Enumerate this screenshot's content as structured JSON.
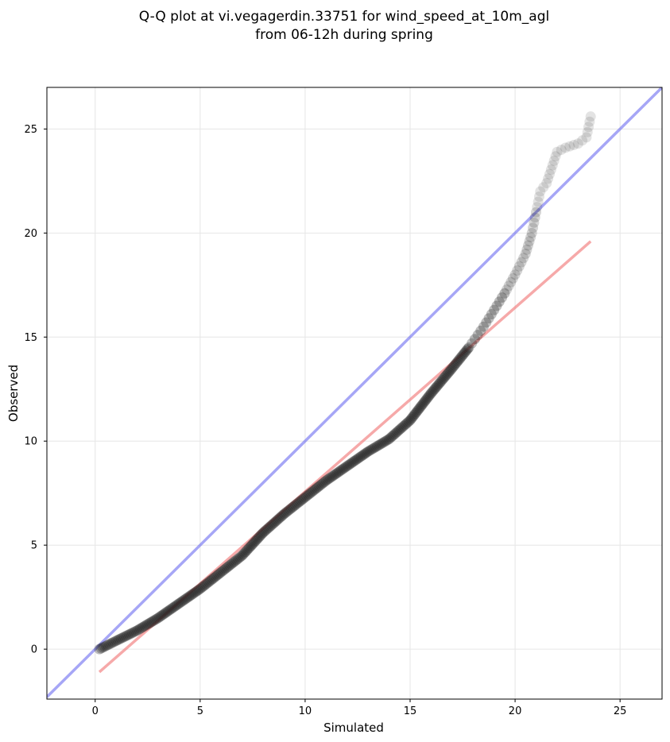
{
  "chart_data": {
    "type": "scatter",
    "title": [
      "Q-Q plot at vi.vegagerdin.33751 for wind_speed_at_10m_agl",
      "from 06-12h during spring"
    ],
    "xlabel": "Simulated",
    "ylabel": "Observed",
    "xlim": [
      -2.3,
      27
    ],
    "ylim": [
      -2.4,
      27
    ],
    "xticks": [
      0,
      5,
      10,
      15,
      20,
      25
    ],
    "yticks": [
      0,
      5,
      10,
      15,
      20,
      25
    ],
    "grid": true,
    "identity_line": {
      "x": [
        -2.3,
        27
      ],
      "y": [
        -2.3,
        27
      ],
      "color": "#6b6bf0"
    },
    "fit_line": {
      "x": [
        0.2,
        23.6
      ],
      "y": [
        -1.1,
        19.6
      ],
      "color": "#f07070"
    },
    "quantile_curve": {
      "x": [
        0.2,
        0.6,
        1.0,
        2.0,
        3.0,
        4.0,
        5.0,
        6.0,
        7.0,
        8.0,
        9.0,
        10.0,
        11.0,
        12.0,
        13.0,
        14.0,
        15.0,
        16.0,
        17.0,
        17.8,
        18.5,
        19.0,
        19.5,
        20.0,
        20.5,
        20.8,
        21.0,
        21.2,
        21.5,
        22.0,
        22.4,
        23.0,
        23.4,
        23.6
      ],
      "y": [
        0.0,
        0.2,
        0.4,
        0.9,
        1.5,
        2.2,
        2.9,
        3.7,
        4.5,
        5.6,
        6.5,
        7.3,
        8.1,
        8.8,
        9.5,
        10.1,
        11.0,
        12.3,
        13.5,
        14.5,
        15.5,
        16.3,
        17.1,
        18.0,
        19.0,
        20.0,
        21.0,
        22.0,
        22.4,
        23.9,
        24.1,
        24.3,
        24.6,
        25.6
      ]
    },
    "marker_color": "#1a1a1a"
  }
}
